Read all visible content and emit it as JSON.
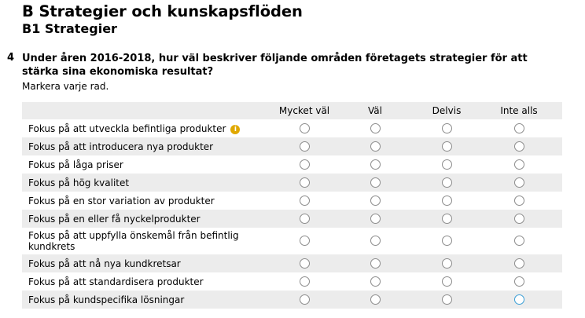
{
  "section": {
    "title": "B Strategier och kunskapsflöden",
    "subtitle": "B1 Strategier"
  },
  "question": {
    "number": "4",
    "text": "Under åren 2016-2018, hur väl beskriver följande områden företagets strategier för att stärka sina ekonomiska resultat?",
    "instruction": "Markera varje rad."
  },
  "columns": [
    "Mycket väl",
    "Väl",
    "Delvis",
    "Inte alls"
  ],
  "rows": [
    {
      "label": "Fokus på att utveckla befintliga produkter",
      "info_icon": true
    },
    {
      "label": "Fokus på att introducera nya produkter"
    },
    {
      "label": "Fokus på låga priser"
    },
    {
      "label": "Fokus på hög kvalitet"
    },
    {
      "label": "Fokus på en stor variation av produkter"
    },
    {
      "label": "Fokus på en eller få nyckelprodukter"
    },
    {
      "label": "Fokus på att uppfylla önskemål från befintlig kundkrets"
    },
    {
      "label": "Fokus på att nå nya kundkretsar"
    },
    {
      "label": "Fokus på att standardisera produkter"
    },
    {
      "label": "Fokus på kundspecifika lösningar"
    }
  ],
  "info_icon_glyph": "i",
  "colors": {
    "row_shade": "#ececec",
    "info_icon": "#e0a800",
    "radio_focus": "#3a9ed6"
  }
}
